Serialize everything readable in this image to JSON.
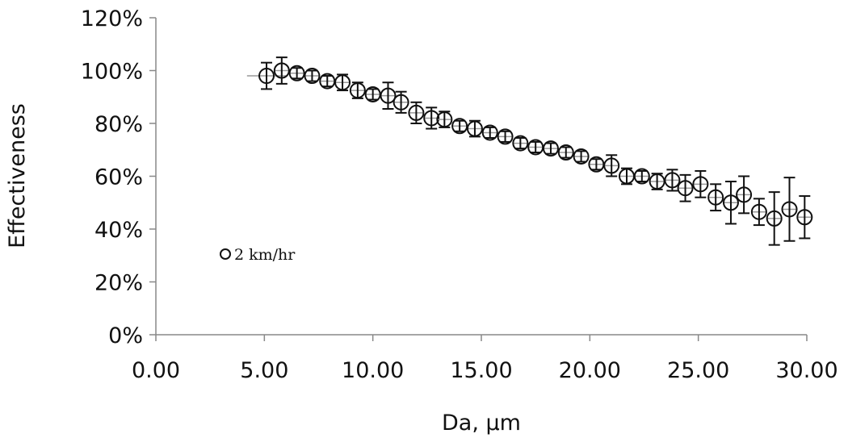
{
  "chart_data": {
    "type": "scatter",
    "xlabel": "Da, µm",
    "ylabel": "Effectiveness",
    "xlim": [
      0,
      30
    ],
    "ylim": [
      0,
      1.2
    ],
    "x_ticks": [
      "0.00",
      "5.00",
      "10.00",
      "15.00",
      "20.00",
      "25.00",
      "30.00"
    ],
    "y_ticks": [
      "0%",
      "20%",
      "40%",
      "60%",
      "80%",
      "100%",
      "120%"
    ],
    "grid": false,
    "legend_position": "left",
    "marker": "open-circle",
    "series": [
      {
        "name": "2 km/hr",
        "points": [
          {
            "x": 5.1,
            "y": 0.98,
            "yerr": 0.05,
            "xerr": 0.9
          },
          {
            "x": 5.8,
            "y": 1.0,
            "yerr": 0.05,
            "xerr": 0.3
          },
          {
            "x": 6.5,
            "y": 0.99,
            "yerr": 0.02,
            "xerr": 0.3
          },
          {
            "x": 7.2,
            "y": 0.98,
            "yerr": 0.02,
            "xerr": 0.3
          },
          {
            "x": 7.9,
            "y": 0.96,
            "yerr": 0.02,
            "xerr": 0.3
          },
          {
            "x": 8.6,
            "y": 0.955,
            "yerr": 0.03,
            "xerr": 0.3
          },
          {
            "x": 9.3,
            "y": 0.925,
            "yerr": 0.03,
            "xerr": 0.3
          },
          {
            "x": 10.0,
            "y": 0.91,
            "yerr": 0.02,
            "xerr": 0.3
          },
          {
            "x": 10.7,
            "y": 0.905,
            "yerr": 0.05,
            "xerr": 0.3
          },
          {
            "x": 11.3,
            "y": 0.88,
            "yerr": 0.04,
            "xerr": 0.3
          },
          {
            "x": 12.0,
            "y": 0.84,
            "yerr": 0.04,
            "xerr": 0.3
          },
          {
            "x": 12.7,
            "y": 0.82,
            "yerr": 0.04,
            "xerr": 0.3
          },
          {
            "x": 13.3,
            "y": 0.815,
            "yerr": 0.03,
            "xerr": 0.3
          },
          {
            "x": 14.0,
            "y": 0.79,
            "yerr": 0.02,
            "xerr": 0.3
          },
          {
            "x": 14.7,
            "y": 0.78,
            "yerr": 0.03,
            "xerr": 0.3
          },
          {
            "x": 15.4,
            "y": 0.765,
            "yerr": 0.02,
            "xerr": 0.3
          },
          {
            "x": 16.1,
            "y": 0.75,
            "yerr": 0.02,
            "xerr": 0.3
          },
          {
            "x": 16.8,
            "y": 0.725,
            "yerr": 0.02,
            "xerr": 0.3
          },
          {
            "x": 17.5,
            "y": 0.71,
            "yerr": 0.02,
            "xerr": 0.3
          },
          {
            "x": 18.2,
            "y": 0.705,
            "yerr": 0.02,
            "xerr": 0.3
          },
          {
            "x": 18.9,
            "y": 0.69,
            "yerr": 0.02,
            "xerr": 0.3
          },
          {
            "x": 19.6,
            "y": 0.675,
            "yerr": 0.02,
            "xerr": 0.3
          },
          {
            "x": 20.3,
            "y": 0.645,
            "yerr": 0.02,
            "xerr": 0.3
          },
          {
            "x": 21.0,
            "y": 0.64,
            "yerr": 0.04,
            "xerr": 0.3
          },
          {
            "x": 21.7,
            "y": 0.6,
            "yerr": 0.03,
            "xerr": 0.3
          },
          {
            "x": 22.4,
            "y": 0.6,
            "yerr": 0.02,
            "xerr": 0.3
          },
          {
            "x": 23.1,
            "y": 0.58,
            "yerr": 0.03,
            "xerr": 0.3
          },
          {
            "x": 23.8,
            "y": 0.585,
            "yerr": 0.04,
            "xerr": 0.3
          },
          {
            "x": 24.4,
            "y": 0.555,
            "yerr": 0.05,
            "xerr": 0.3
          },
          {
            "x": 25.1,
            "y": 0.57,
            "yerr": 0.05,
            "xerr": 0.3
          },
          {
            "x": 25.8,
            "y": 0.52,
            "yerr": 0.05,
            "xerr": 0.3
          },
          {
            "x": 26.5,
            "y": 0.5,
            "yerr": 0.08,
            "xerr": 0.3
          },
          {
            "x": 27.1,
            "y": 0.53,
            "yerr": 0.07,
            "xerr": 0.3
          },
          {
            "x": 27.8,
            "y": 0.465,
            "yerr": 0.05,
            "xerr": 0.3
          },
          {
            "x": 28.5,
            "y": 0.44,
            "yerr": 0.1,
            "xerr": 0.3
          },
          {
            "x": 29.2,
            "y": 0.475,
            "yerr": 0.12,
            "xerr": 0.3
          },
          {
            "x": 29.9,
            "y": 0.445,
            "yerr": 0.08,
            "xerr": 0.3
          }
        ]
      }
    ],
    "legend": [
      "2 km/hr"
    ]
  }
}
